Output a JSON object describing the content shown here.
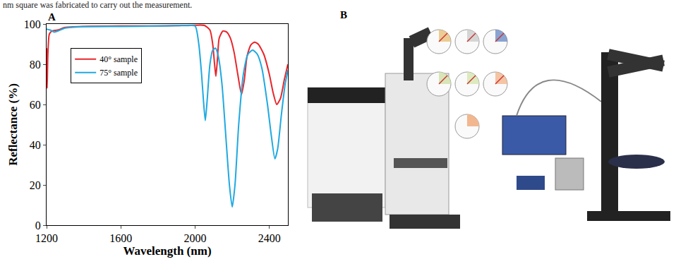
{
  "header": "nm square was fabricated to carry out the measurement.",
  "chart_data": {
    "type": "line",
    "panel_label": "A",
    "x_label": "Wavelength (nm)",
    "y_label": "Reflectance (%)",
    "xlim": [
      1200,
      2500
    ],
    "xticks": [
      1200,
      1600,
      2000,
      2400
    ],
    "ylim": [
      0,
      100
    ],
    "yticks": [
      0,
      20,
      40,
      60,
      80,
      100
    ],
    "grid": false,
    "legend": "upper left",
    "series": [
      {
        "name": "40° sample",
        "color": "#e8262b",
        "x": [
          1200,
          1203,
          1207,
          1215,
          1230,
          1260,
          1300,
          1400,
          1600,
          1800,
          1900,
          2000,
          2050,
          2080,
          2095,
          2105,
          2112,
          2120,
          2130,
          2150,
          2170,
          2190,
          2210,
          2230,
          2250,
          2265,
          2280,
          2300,
          2320,
          2340,
          2370,
          2400,
          2420,
          2440,
          2460,
          2480,
          2500
        ],
        "values": [
          88,
          68,
          85,
          95,
          96.5,
          97,
          98.3,
          98.8,
          99,
          99,
          99.2,
          99.4,
          99.3,
          97,
          90,
          80,
          74,
          82,
          93,
          96.5,
          96,
          93,
          86,
          75,
          65,
          72,
          84,
          89.5,
          91,
          90,
          85,
          75,
          66,
          60,
          63,
          72,
          80
        ]
      },
      {
        "name": "75° sample",
        "color": "#1fa9e1",
        "x": [
          1200,
          1220,
          1240,
          1260,
          1300,
          1400,
          1600,
          1800,
          1950,
          2000,
          2020,
          2035,
          2045,
          2055,
          2065,
          2080,
          2095,
          2110,
          2125,
          2145,
          2165,
          2185,
          2200,
          2215,
          2235,
          2260,
          2285,
          2310,
          2335,
          2360,
          2390,
          2410,
          2430,
          2445,
          2465,
          2485,
          2500
        ],
        "values": [
          97.5,
          97,
          96,
          96.5,
          98,
          98.7,
          98.8,
          99,
          99.2,
          99,
          90,
          75,
          62,
          52,
          62,
          80,
          87,
          88,
          84,
          70,
          45,
          20,
          9,
          20,
          50,
          75,
          85,
          87,
          85,
          78,
          60,
          45,
          33,
          38,
          55,
          70,
          77
        ]
      }
    ]
  },
  "panel_b": {
    "label": "B"
  }
}
